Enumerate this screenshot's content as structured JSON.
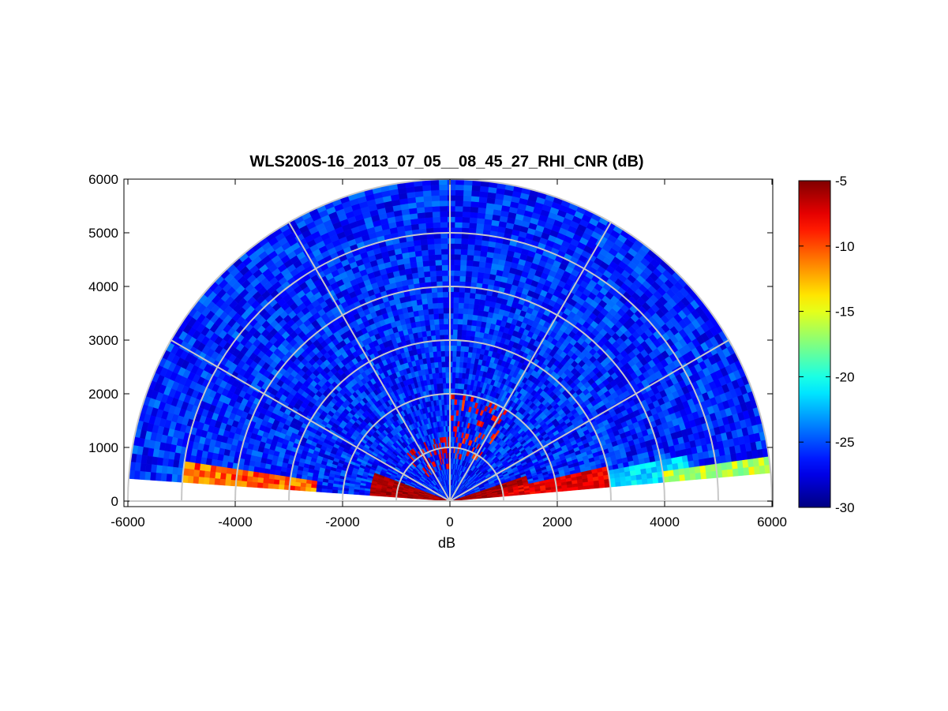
{
  "chart_data": {
    "type": "heatmap",
    "projection": "polar RHI (range-height indicator) sector",
    "title": "WLS200S-16_2013_07_05__08_45_27_RHI_CNR (dB)",
    "xlabel": "dB",
    "ylabel": "",
    "xlim": [
      -6000,
      6000
    ],
    "ylim": [
      0,
      6000
    ],
    "xticks": [
      -6000,
      -4000,
      -2000,
      0,
      2000,
      4000,
      6000
    ],
    "yticks": [
      0,
      1000,
      2000,
      3000,
      4000,
      5000,
      6000
    ],
    "max_range": 6000,
    "range_rings": [
      1000,
      2000,
      3000,
      4000,
      5000,
      6000
    ],
    "angle_spokes_deg": [
      0,
      30,
      60,
      90,
      120,
      150,
      180
    ],
    "elevation_coverage_deg": [
      5,
      175
    ],
    "grid": true,
    "colorbar": {
      "colormap": "jet",
      "clim": [
        -30,
        -5
      ],
      "ticks": [
        -5,
        -10,
        -15,
        -20,
        -25,
        -30
      ],
      "placement": "right"
    },
    "field_description": {
      "background_cnr_db": -26,
      "features": [
        {
          "region": "near-ground layer, both sides, elevation < ~15 deg, range < 1500",
          "cnr_db": -5
        },
        {
          "region": "low-elevation plume toward +x (right), range 1000-3000",
          "cnr_db": -7
        },
        {
          "region": "low-elevation plume toward +x, range 3000-4500",
          "cnr_db": -21
        },
        {
          "region": "lowest elevation beam toward +x, range 4000-6000",
          "cnr_db": -15
        },
        {
          "region": "lowest elevation beam toward -x, range 2500-5000",
          "cnr_db": -10
        },
        {
          "region": "scattered patches near x 0-1200, height 500-1800",
          "cnr_db": -8
        }
      ]
    }
  }
}
